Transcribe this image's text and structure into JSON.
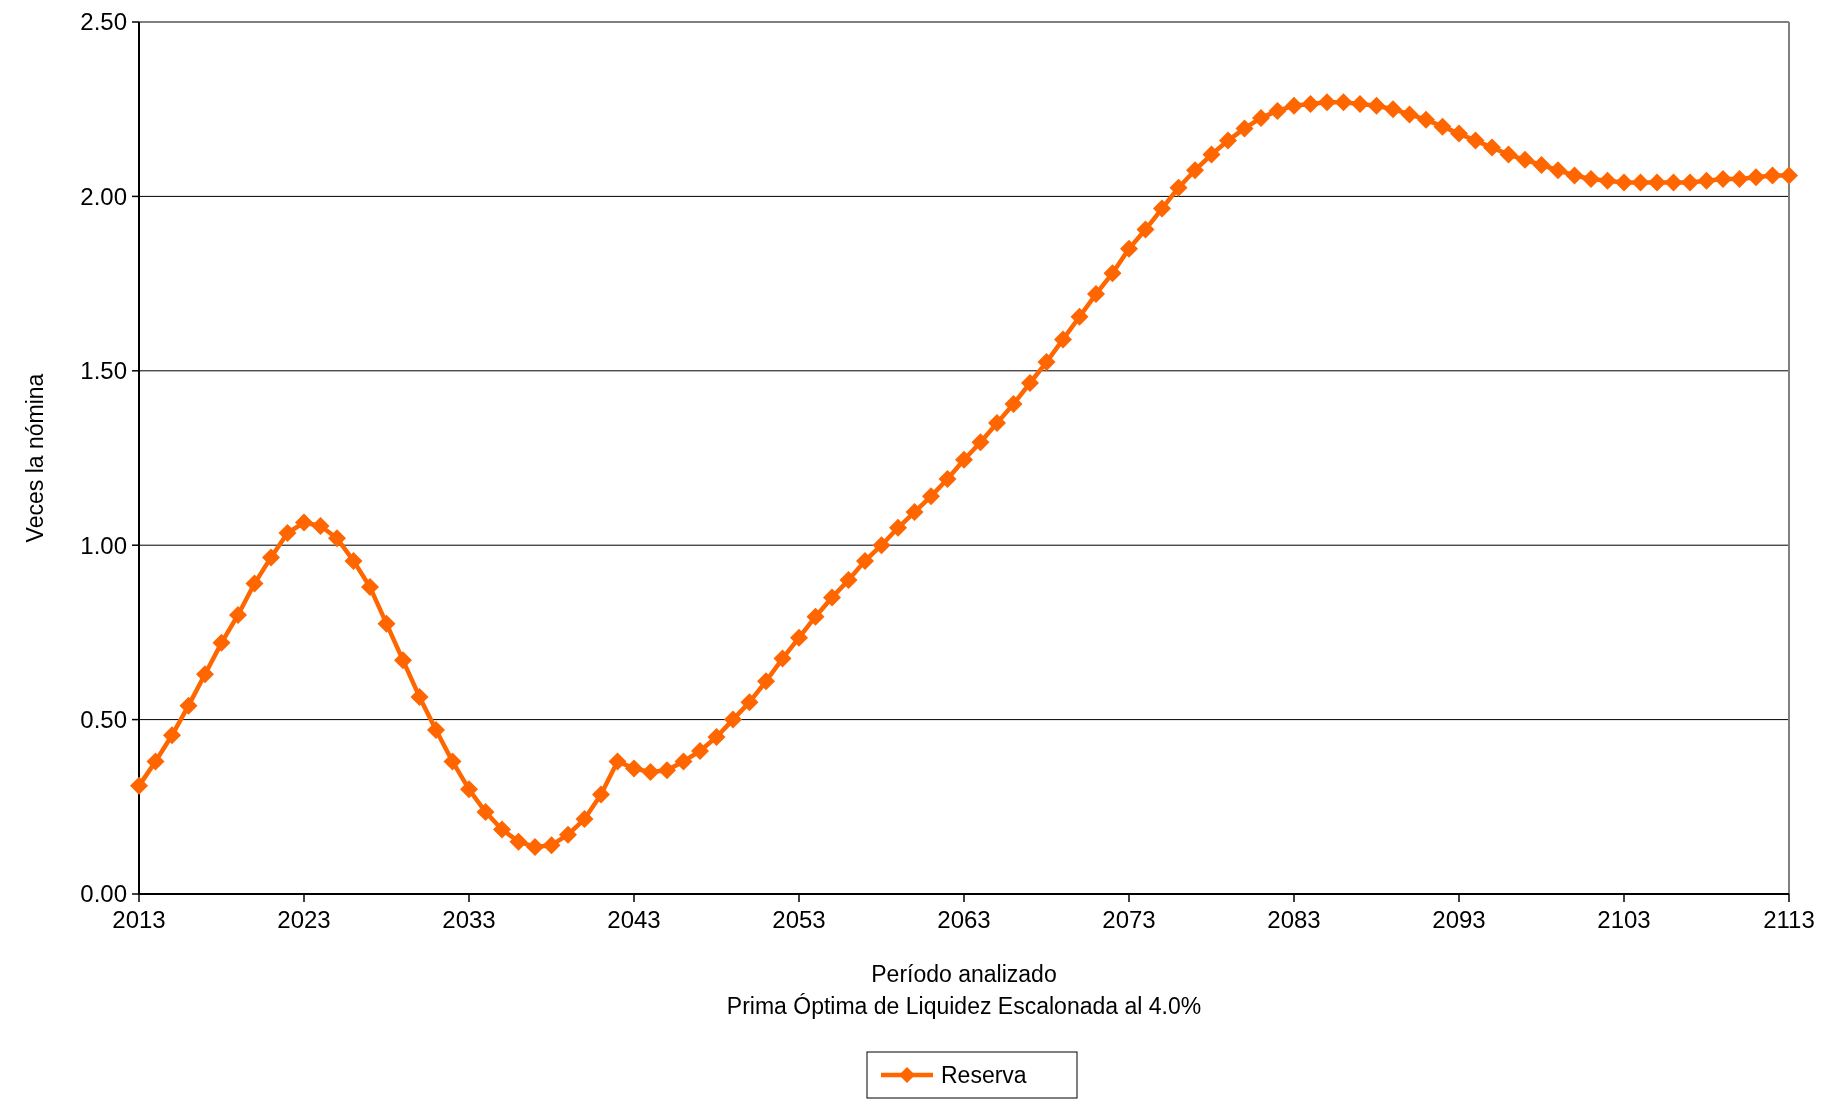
{
  "chart_data": {
    "type": "line",
    "xlabel": "Período analizado",
    "ylabel": "Veces la nómina",
    "annotations": [
      "Prima Óptima de Liquidez Escalonada al 4.0%"
    ],
    "x": [
      2013,
      2014,
      2015,
      2016,
      2017,
      2018,
      2019,
      2020,
      2021,
      2022,
      2023,
      2024,
      2025,
      2026,
      2027,
      2028,
      2029,
      2030,
      2031,
      2032,
      2033,
      2034,
      2035,
      2036,
      2037,
      2038,
      2039,
      2040,
      2041,
      2042,
      2043,
      2044,
      2045,
      2046,
      2047,
      2048,
      2049,
      2050,
      2051,
      2052,
      2053,
      2054,
      2055,
      2056,
      2057,
      2058,
      2059,
      2060,
      2061,
      2062,
      2063,
      2064,
      2065,
      2066,
      2067,
      2068,
      2069,
      2070,
      2071,
      2072,
      2073,
      2074,
      2075,
      2076,
      2077,
      2078,
      2079,
      2080,
      2081,
      2082,
      2083,
      2084,
      2085,
      2086,
      2087,
      2088,
      2089,
      2090,
      2091,
      2092,
      2093,
      2094,
      2095,
      2096,
      2097,
      2098,
      2099,
      2100,
      2101,
      2102,
      2103,
      2104,
      2105,
      2106,
      2107,
      2108,
      2109,
      2110,
      2111,
      2112,
      2113
    ],
    "series": [
      {
        "name": "Reserva",
        "color": "#ff6600",
        "values": [
          0.31,
          0.38,
          0.455,
          0.54,
          0.63,
          0.72,
          0.8,
          0.89,
          0.965,
          1.035,
          1.065,
          1.055,
          1.02,
          0.955,
          0.88,
          0.775,
          0.67,
          0.565,
          0.47,
          0.38,
          0.3,
          0.235,
          0.185,
          0.15,
          0.135,
          0.14,
          0.17,
          0.215,
          0.285,
          0.38,
          0.36,
          0.35,
          0.355,
          0.38,
          0.41,
          0.45,
          0.5,
          0.55,
          0.61,
          0.675,
          0.735,
          0.795,
          0.85,
          0.9,
          0.955,
          1.0,
          1.05,
          1.095,
          1.14,
          1.19,
          1.245,
          1.295,
          1.35,
          1.405,
          1.465,
          1.525,
          1.59,
          1.655,
          1.72,
          1.78,
          1.85,
          1.905,
          1.965,
          2.025,
          2.075,
          2.12,
          2.16,
          2.195,
          2.225,
          2.245,
          2.26,
          2.265,
          2.27,
          2.27,
          2.265,
          2.26,
          2.25,
          2.235,
          2.22,
          2.2,
          2.18,
          2.16,
          2.14,
          2.12,
          2.105,
          2.09,
          2.075,
          2.06,
          2.05,
          2.045,
          2.04,
          2.04,
          2.04,
          2.04,
          2.04,
          2.045,
          2.05,
          2.05,
          2.055,
          2.06,
          2.06
        ]
      }
    ],
    "xlim": [
      2013,
      2113
    ],
    "xticks": [
      2013,
      2023,
      2033,
      2043,
      2053,
      2063,
      2073,
      2083,
      2093,
      2103,
      2113
    ],
    "ylim": [
      0,
      2.5
    ],
    "yticks": [
      {
        "value": 0,
        "label": "0.00"
      },
      {
        "value": 0.5,
        "label": "0.50"
      },
      {
        "value": 1,
        "label": "1.00"
      },
      {
        "value": 1.5,
        "label": "1.50"
      },
      {
        "value": 2,
        "label": "2.00"
      },
      {
        "value": 2.5,
        "label": "2.50"
      }
    ],
    "grid": "y",
    "legend": "bottom",
    "marker": "diamond",
    "line_style": "solid"
  }
}
